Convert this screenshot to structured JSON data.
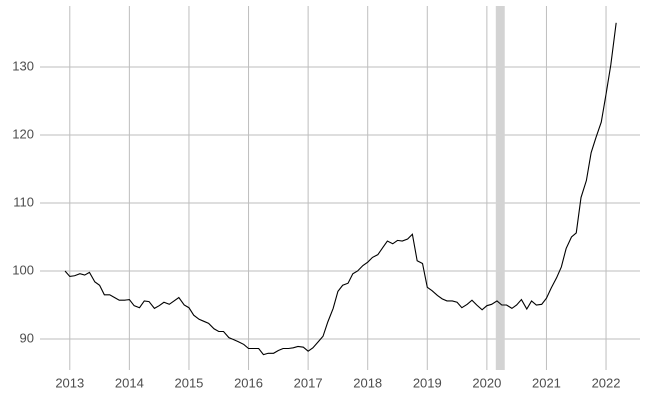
{
  "chart_data": {
    "type": "line",
    "x": [
      2012.92,
      2013.0,
      2013.08,
      2013.17,
      2013.25,
      2013.33,
      2013.42,
      2013.5,
      2013.58,
      2013.67,
      2013.75,
      2013.83,
      2013.92,
      2014.0,
      2014.08,
      2014.17,
      2014.25,
      2014.33,
      2014.42,
      2014.5,
      2014.58,
      2014.67,
      2014.75,
      2014.83,
      2014.92,
      2015.0,
      2015.08,
      2015.17,
      2015.25,
      2015.33,
      2015.42,
      2015.5,
      2015.58,
      2015.67,
      2015.75,
      2015.83,
      2015.92,
      2016.0,
      2016.08,
      2016.17,
      2016.25,
      2016.33,
      2016.42,
      2016.5,
      2016.58,
      2016.67,
      2016.75,
      2016.83,
      2016.92,
      2017.0,
      2017.08,
      2017.17,
      2017.25,
      2017.33,
      2017.42,
      2017.5,
      2017.58,
      2017.67,
      2017.75,
      2017.83,
      2017.92,
      2018.0,
      2018.08,
      2018.17,
      2018.25,
      2018.33,
      2018.42,
      2018.5,
      2018.58,
      2018.67,
      2018.75,
      2018.83,
      2018.92,
      2019.0,
      2019.08,
      2019.17,
      2019.25,
      2019.33,
      2019.42,
      2019.5,
      2019.58,
      2019.67,
      2019.75,
      2019.83,
      2019.92,
      2020.0,
      2020.08,
      2020.17,
      2020.25,
      2020.33,
      2020.42,
      2020.5,
      2020.58,
      2020.67,
      2020.75,
      2020.83,
      2020.92,
      2021.0,
      2021.08,
      2021.17,
      2021.25,
      2021.33,
      2021.42,
      2021.5,
      2021.58,
      2021.67,
      2021.75,
      2021.83,
      2021.92,
      2022.0,
      2022.08,
      2022.17
    ],
    "values": [
      100,
      99.2,
      99.3,
      99.6,
      99.4,
      99.8,
      98.4,
      97.9,
      96.5,
      96.5,
      96.1,
      95.7,
      95.7,
      95.8,
      94.9,
      94.6,
      95.6,
      95.5,
      94.5,
      94.9,
      95.4,
      95.1,
      95.6,
      96.1,
      95.0,
      94.6,
      93.5,
      92.9,
      92.6,
      92.3,
      91.5,
      91.1,
      91.1,
      90.2,
      89.9,
      89.6,
      89.2,
      88.6,
      88.6,
      88.6,
      87.7,
      87.9,
      87.9,
      88.3,
      88.6,
      88.6,
      88.7,
      88.9,
      88.8,
      88.2,
      88.7,
      89.6,
      90.4,
      92.5,
      94.5,
      97.0,
      97.9,
      98.2,
      99.6,
      100.0,
      100.8,
      101.3,
      102.0,
      102.4,
      103.4,
      104.4,
      104.0,
      104.5,
      104.4,
      104.7,
      105.4,
      101.5,
      101.1,
      97.6,
      97.1,
      96.4,
      95.9,
      95.6,
      95.6,
      95.4,
      94.6,
      95.1,
      95.7,
      95.0,
      94.3,
      94.9,
      95.1,
      95.6,
      95.0,
      95.0,
      94.5,
      95.0,
      95.8,
      94.4,
      95.6,
      95.0,
      95.1,
      96.0,
      97.5,
      99.0,
      100.6,
      103.3,
      105.0,
      105.6,
      110.8,
      113.3,
      117.4,
      119.6,
      121.9,
      126.0,
      130.3,
      136.5
    ],
    "color": "#000000",
    "shade": [
      2020.15,
      2020.3
    ],
    "shade_color": "#d3d3d3",
    "xlim": [
      2012.5,
      2022.57
    ],
    "xticks": [
      2013,
      2014,
      2015,
      2016,
      2017,
      2018,
      2019,
      2020,
      2021,
      2022
    ],
    "ylim": [
      85.44,
      138.97
    ],
    "yticks": [
      90,
      100,
      110,
      120,
      130
    ],
    "grid": true
  }
}
